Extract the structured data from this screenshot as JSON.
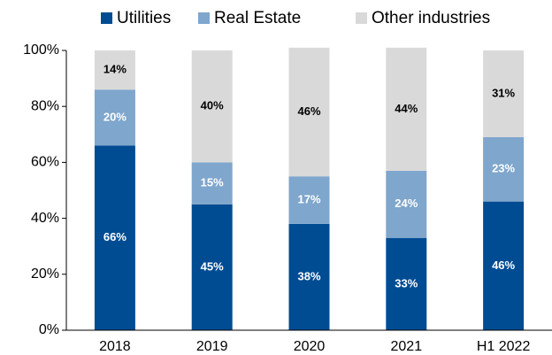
{
  "chart_data": {
    "type": "stacked_bar",
    "categories": [
      "2018",
      "2019",
      "2020",
      "2021",
      "H1 2022"
    ],
    "series": [
      {
        "name": "Utilities",
        "color": "#004c93",
        "label_color": "#ffffff",
        "values": [
          66,
          45,
          38,
          33,
          46
        ],
        "value_labels": [
          "66%",
          "45%",
          "38%",
          "33%",
          "46%"
        ]
      },
      {
        "name": "Real Estate",
        "color": "#7fa6cc",
        "label_color": "#ffffff",
        "values": [
          20,
          15,
          17,
          24,
          23
        ],
        "value_labels": [
          "20%",
          "15%",
          "17%",
          "24%",
          "23%"
        ]
      },
      {
        "name": "Other industries",
        "color": "#d9d9d9",
        "label_color": "#000000",
        "values": [
          14,
          40,
          46,
          44,
          31
        ],
        "value_labels": [
          "14%",
          "40%",
          "46%",
          "44%",
          "31%"
        ]
      }
    ],
    "ylim": [
      0,
      100
    ],
    "yticks": [
      {
        "value": 0,
        "label": "0%"
      },
      {
        "value": 20,
        "label": "20%"
      },
      {
        "value": 40,
        "label": "40%"
      },
      {
        "value": 60,
        "label": "60%"
      },
      {
        "value": 80,
        "label": "80%"
      },
      {
        "value": 100,
        "label": "100%"
      }
    ],
    "legend": "top",
    "grid": false
  }
}
